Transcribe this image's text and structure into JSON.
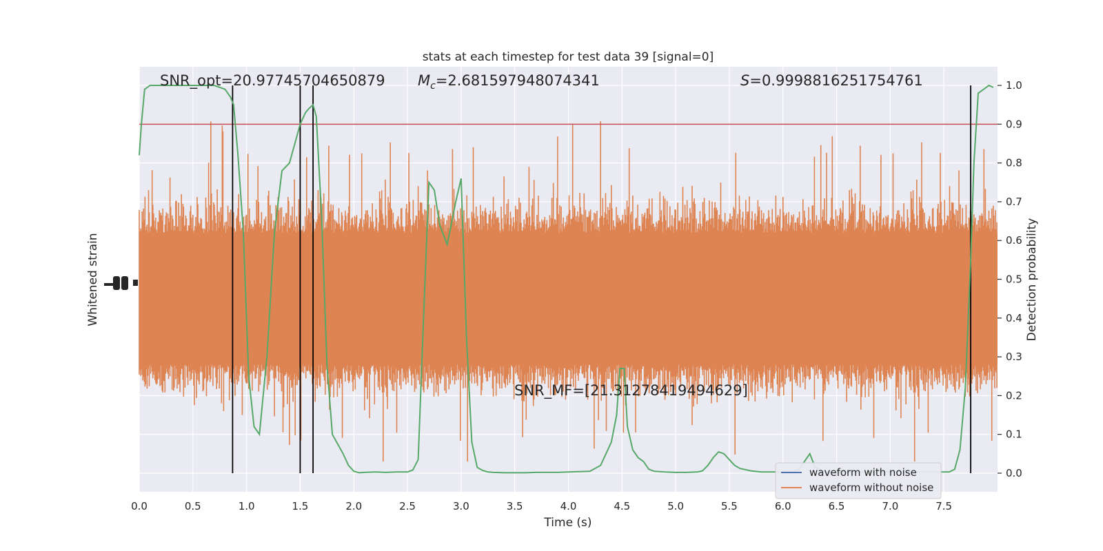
{
  "chart_data": {
    "type": "line",
    "title": "stats at each timestep for test data 39 [signal=0]",
    "xlabel": "Time (s)",
    "ylabel_left": "Whitened strain",
    "ylabel_right": "Detection probability",
    "xlim": [
      0.0,
      8.0
    ],
    "xticks": [
      "0.0",
      "0.5",
      "1.0",
      "1.5",
      "2.0",
      "2.5",
      "3.0",
      "3.5",
      "4.0",
      "4.5",
      "5.0",
      "5.5",
      "6.0",
      "6.5",
      "7.0",
      "7.5"
    ],
    "xtick_values": [
      0.0,
      0.5,
      1.0,
      1.5,
      2.0,
      2.5,
      3.0,
      3.5,
      4.0,
      4.5,
      5.0,
      5.5,
      6.0,
      6.5,
      7.0,
      7.5
    ],
    "ylim_right": [
      -0.048,
      1.048
    ],
    "yticks_right": [
      "0.0",
      "0.1",
      "0.2",
      "0.3",
      "0.4",
      "0.5",
      "0.6",
      "0.7",
      "0.8",
      "0.9",
      "1.0"
    ],
    "ytick_values_right": [
      0.0,
      0.1,
      0.2,
      0.3,
      0.4,
      0.5,
      0.6,
      0.7,
      0.8,
      0.9,
      1.0
    ],
    "grid": true,
    "annotations": {
      "snr_opt": "SNR_opt=20.97745704650879",
      "mc_symbol": "M",
      "mc_sub": "c",
      "mc_value": "=2.681597948074341",
      "s_symbol": "S",
      "s_value": "=0.9998816251754761",
      "snr_mf": "SNR_MF=[21.31278419494629]"
    },
    "threshold": 0.9,
    "vlines": [
      0.87,
      1.5,
      1.62,
      7.75
    ],
    "legend": {
      "placement": "lower-right",
      "entries": [
        {
          "label": "waveform with noise",
          "color": "#4c72b0"
        },
        {
          "label": "waveform without noise",
          "color": "#dd8452"
        }
      ]
    },
    "series": [
      {
        "name": "Detection probability",
        "color": "#55a868",
        "x": [
          0.0,
          0.02,
          0.05,
          0.1,
          0.2,
          0.3,
          0.4,
          0.5,
          0.6,
          0.7,
          0.8,
          0.85,
          0.88,
          0.92,
          0.97,
          1.02,
          1.07,
          1.12,
          1.19,
          1.26,
          1.33,
          1.4,
          1.45,
          1.5,
          1.55,
          1.58,
          1.62,
          1.65,
          1.7,
          1.75,
          1.8,
          1.9,
          1.95,
          2.0,
          2.05,
          2.1,
          2.2,
          2.3,
          2.4,
          2.5,
          2.55,
          2.6,
          2.65,
          2.7,
          2.75,
          2.8,
          2.87,
          2.9,
          2.95,
          3.0,
          3.05,
          3.1,
          3.15,
          3.2,
          3.25,
          3.3,
          3.4,
          3.5,
          3.6,
          3.7,
          3.8,
          3.9,
          4.0,
          4.1,
          4.2,
          4.3,
          4.35,
          4.4,
          4.45,
          4.48,
          4.52,
          4.55,
          4.6,
          4.65,
          4.7,
          4.75,
          4.8,
          4.9,
          5.0,
          5.1,
          5.2,
          5.25,
          5.3,
          5.35,
          5.4,
          5.45,
          5.5,
          5.55,
          5.6,
          5.7,
          5.8,
          5.9,
          6.0,
          6.1,
          6.15,
          6.2,
          6.25,
          6.3,
          6.4,
          6.5,
          6.6,
          6.7,
          6.8,
          6.9,
          7.0,
          7.1,
          7.2,
          7.3,
          7.4,
          7.5,
          7.55,
          7.6,
          7.65,
          7.7,
          7.75,
          7.78,
          7.82,
          7.87,
          7.92,
          7.96
        ],
        "y": [
          0.82,
          0.9,
          0.99,
          1.0,
          1.0,
          1.0,
          1.0,
          1.0,
          1.0,
          1.0,
          0.99,
          0.97,
          0.95,
          0.82,
          0.62,
          0.25,
          0.12,
          0.1,
          0.3,
          0.62,
          0.78,
          0.8,
          0.85,
          0.9,
          0.93,
          0.94,
          0.95,
          0.92,
          0.66,
          0.28,
          0.1,
          0.05,
          0.02,
          0.005,
          0.001,
          0.002,
          0.003,
          0.002,
          0.003,
          0.003,
          0.008,
          0.035,
          0.4,
          0.75,
          0.73,
          0.64,
          0.59,
          0.63,
          0.7,
          0.76,
          0.35,
          0.08,
          0.015,
          0.007,
          0.003,
          0.002,
          0.001,
          0.001,
          0.001,
          0.002,
          0.002,
          0.002,
          0.003,
          0.004,
          0.005,
          0.02,
          0.05,
          0.08,
          0.15,
          0.27,
          0.27,
          0.12,
          0.06,
          0.04,
          0.03,
          0.01,
          0.005,
          0.003,
          0.002,
          0.002,
          0.003,
          0.006,
          0.02,
          0.04,
          0.055,
          0.05,
          0.035,
          0.02,
          0.012,
          0.006,
          0.003,
          0.003,
          0.003,
          0.003,
          0.01,
          0.03,
          0.05,
          0.015,
          0.003,
          0.003,
          0.003,
          0.003,
          0.003,
          0.003,
          0.003,
          0.003,
          0.003,
          0.003,
          0.003,
          0.003,
          0.003,
          0.01,
          0.06,
          0.22,
          0.55,
          0.8,
          0.98,
          0.99,
          1.0,
          0.995
        ]
      }
    ]
  }
}
